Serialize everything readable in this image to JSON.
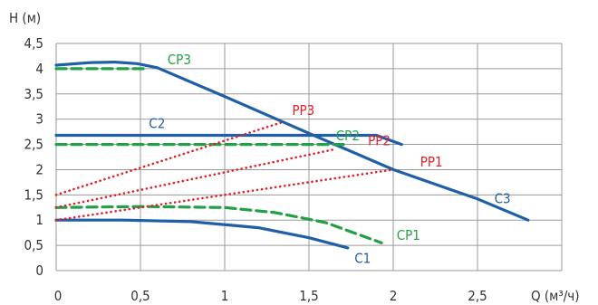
{
  "chart_data": {
    "type": "line",
    "xlabel": "Q (м³/ч)",
    "ylabel": "H (м)",
    "xlim": [
      0,
      3
    ],
    "ylim": [
      0,
      4.5
    ],
    "x_ticks": [
      "0",
      "0,5",
      "1",
      "1,5",
      "2",
      "2,5"
    ],
    "y_ticks": [
      "0",
      "0,5",
      "1",
      "1,5",
      "2",
      "2,5",
      "3",
      "3,5",
      "4",
      "4,5"
    ],
    "grid": true,
    "colors": {
      "C": "#1f5fa8",
      "CP": "#23a046",
      "PP": "#e0202a",
      "grid": "#9a9a9a",
      "axis_text": "#333333"
    },
    "series": [
      {
        "name": "C1",
        "style": "solid",
        "color": "#1f5fa8",
        "x": [
          0,
          0.4,
          0.8,
          1.2,
          1.5,
          1.73
        ],
        "y": [
          1.0,
          1.0,
          0.97,
          0.85,
          0.65,
          0.45
        ]
      },
      {
        "name": "C2",
        "style": "solid",
        "color": "#1f5fa8",
        "x": [
          0,
          0.5,
          1.0,
          1.5,
          1.9,
          2.05
        ],
        "y": [
          2.68,
          2.68,
          2.68,
          2.68,
          2.68,
          2.5
        ]
      },
      {
        "name": "C3",
        "style": "solid",
        "color": "#1f5fa8",
        "x": [
          0,
          0.2,
          0.35,
          0.48,
          0.6,
          1.0,
          1.5,
          2.0,
          2.5,
          2.8
        ],
        "y": [
          4.07,
          4.12,
          4.13,
          4.1,
          4.02,
          3.45,
          2.72,
          2.0,
          1.42,
          1.0
        ]
      },
      {
        "name": "CP1",
        "style": "dashed",
        "color": "#23a046",
        "x": [
          0,
          0.5,
          1.0,
          1.3,
          1.6,
          1.93
        ],
        "y": [
          1.25,
          1.27,
          1.25,
          1.15,
          0.95,
          0.55
        ]
      },
      {
        "name": "CP2",
        "style": "dashed",
        "color": "#23a046",
        "x": [
          0,
          0.5,
          1.0,
          1.5,
          1.72
        ],
        "y": [
          2.5,
          2.5,
          2.5,
          2.5,
          2.5
        ]
      },
      {
        "name": "CP3",
        "style": "dashed",
        "color": "#23a046",
        "x": [
          0,
          0.3,
          0.52
        ],
        "y": [
          4.0,
          4.0,
          4.0
        ]
      },
      {
        "name": "PP1",
        "style": "dotted",
        "color": "#e0202a",
        "x": [
          0,
          2.0
        ],
        "y": [
          1.0,
          2.0
        ]
      },
      {
        "name": "PP2",
        "style": "dotted",
        "color": "#e0202a",
        "x": [
          0,
          1.65
        ],
        "y": [
          1.25,
          2.4
        ]
      },
      {
        "name": "PP3",
        "style": "dotted",
        "color": "#e0202a",
        "x": [
          0,
          1.35
        ],
        "y": [
          1.5,
          2.95
        ]
      }
    ],
    "labels": [
      {
        "text": "C1",
        "color": "#1f5fa8",
        "x": 1.77,
        "y": 0.15
      },
      {
        "text": "C2",
        "color": "#1f5fa8",
        "x": 0.55,
        "y": 2.82
      },
      {
        "text": "C3",
        "color": "#1f5fa8",
        "x": 2.6,
        "y": 1.34
      },
      {
        "text": "CP1",
        "color": "#23a046",
        "x": 2.02,
        "y": 0.61
      },
      {
        "text": "CP2",
        "color": "#23a046",
        "x": 1.66,
        "y": 2.58
      },
      {
        "text": "CP3",
        "color": "#23a046",
        "x": 0.66,
        "y": 4.09
      },
      {
        "text": "PP1",
        "color": "#e0202a",
        "x": 2.16,
        "y": 2.06
      },
      {
        "text": "PP2",
        "color": "#e0202a",
        "x": 1.85,
        "y": 2.48
      },
      {
        "text": "PP3",
        "color": "#e0202a",
        "x": 1.4,
        "y": 3.08
      }
    ]
  }
}
